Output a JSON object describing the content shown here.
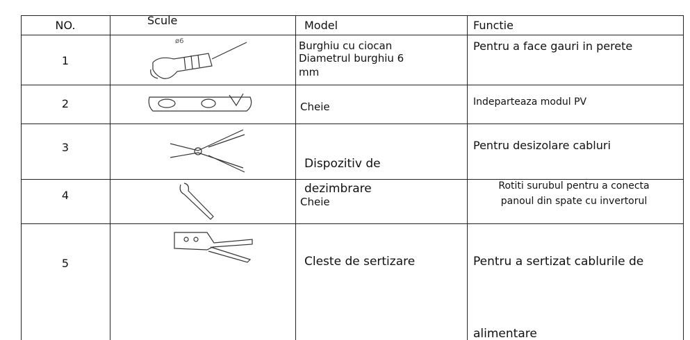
{
  "table": {
    "header": [
      "NO.",
      "Scule",
      "Model",
      "Functie"
    ],
    "rows": [
      {
        "no": "1",
        "icon_label": "ø6",
        "model": [
          "Burghiu cu ciocan",
          "Diametrul burghiu 6",
          "mm"
        ],
        "function": [
          "Pentru a face gauri in perete"
        ]
      },
      {
        "no": "2",
        "model": [
          "Cheie"
        ],
        "function": [
          "Indeparteaza modul PV"
        ]
      },
      {
        "no": "3",
        "model": [
          "Dispozitiv de",
          "dezimbrare"
        ],
        "function": [
          "Pentru desizolare cabluri"
        ]
      },
      {
        "no": "4",
        "model": [
          "Cheie"
        ],
        "function": [
          "Rotiti surubul pentru a conecta",
          "panoul din spate cu invertorul"
        ]
      },
      {
        "no": "5",
        "model": [
          "Cleste de sertizare"
        ],
        "function": [
          "Pentru a sertizat cablurile de",
          "alimentare"
        ]
      }
    ]
  }
}
